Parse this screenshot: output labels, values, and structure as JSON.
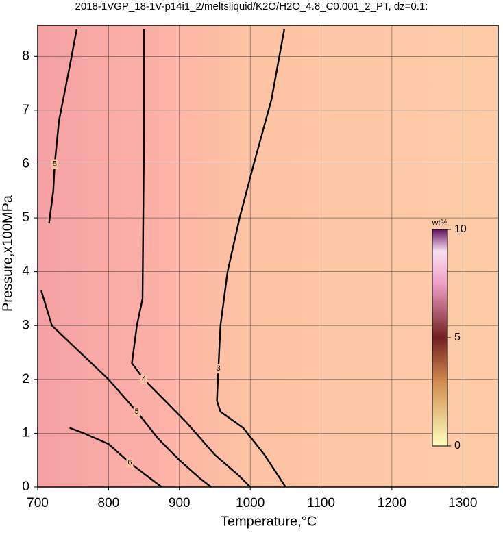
{
  "chart_data": {
    "type": "contour",
    "title": "2018-1VGP_18-1V-p14i1_2/meltsliquid/K2O/H2O_4.8_C0.001_2_PT, dz=0.1:",
    "xlabel": "Temperature,°C",
    "ylabel": "Pressure,x100MPa",
    "xlim": [
      700,
      1350
    ],
    "ylim": [
      0,
      8.5
    ],
    "xticks": [
      700,
      800,
      900,
      1000,
      1100,
      1200,
      1300
    ],
    "yticks": [
      0,
      1,
      2,
      3,
      4,
      5,
      6,
      7,
      8
    ],
    "grid": true,
    "series": [
      {
        "level": 3,
        "x": [
          1048,
          1030,
          1005,
          985,
          968,
          958,
          955,
          953,
          958,
          990,
          1020,
          1040,
          1050
        ],
        "y": [
          8.5,
          7.2,
          6,
          5,
          4,
          3,
          2.2,
          1.6,
          1.4,
          1.1,
          0.6,
          0.2,
          0
        ]
      },
      {
        "level": 4,
        "x": [
          850,
          850,
          849,
          848,
          840,
          833,
          850,
          880,
          910,
          950,
          985,
          1000
        ],
        "y": [
          8.5,
          6.5,
          5,
          3.5,
          3,
          2.3,
          2.0,
          1.6,
          1.2,
          0.6,
          0.2,
          0
        ]
      },
      {
        "level": 5,
        "x": [
          705,
          720,
          760,
          800,
          840,
          870,
          900,
          930,
          945
        ],
        "y": [
          3.65,
          3.0,
          2.5,
          2.0,
          1.4,
          0.9,
          0.5,
          0.15,
          0
        ]
      },
      {
        "level": 6,
        "x": [
          745,
          765,
          800,
          830,
          855,
          875
        ],
        "y": [
          1.1,
          1.0,
          0.8,
          0.45,
          0.2,
          0
        ]
      },
      {
        "level": 5,
        "x": [
          755,
          745,
          730,
          724,
          722,
          716
        ],
        "y": [
          8.5,
          7.8,
          6.8,
          6.0,
          5.5,
          4.9
        ]
      }
    ],
    "colorbar": {
      "label": "wt%",
      "lim": [
        0,
        10
      ],
      "ticks": [
        0,
        5,
        10
      ]
    }
  }
}
